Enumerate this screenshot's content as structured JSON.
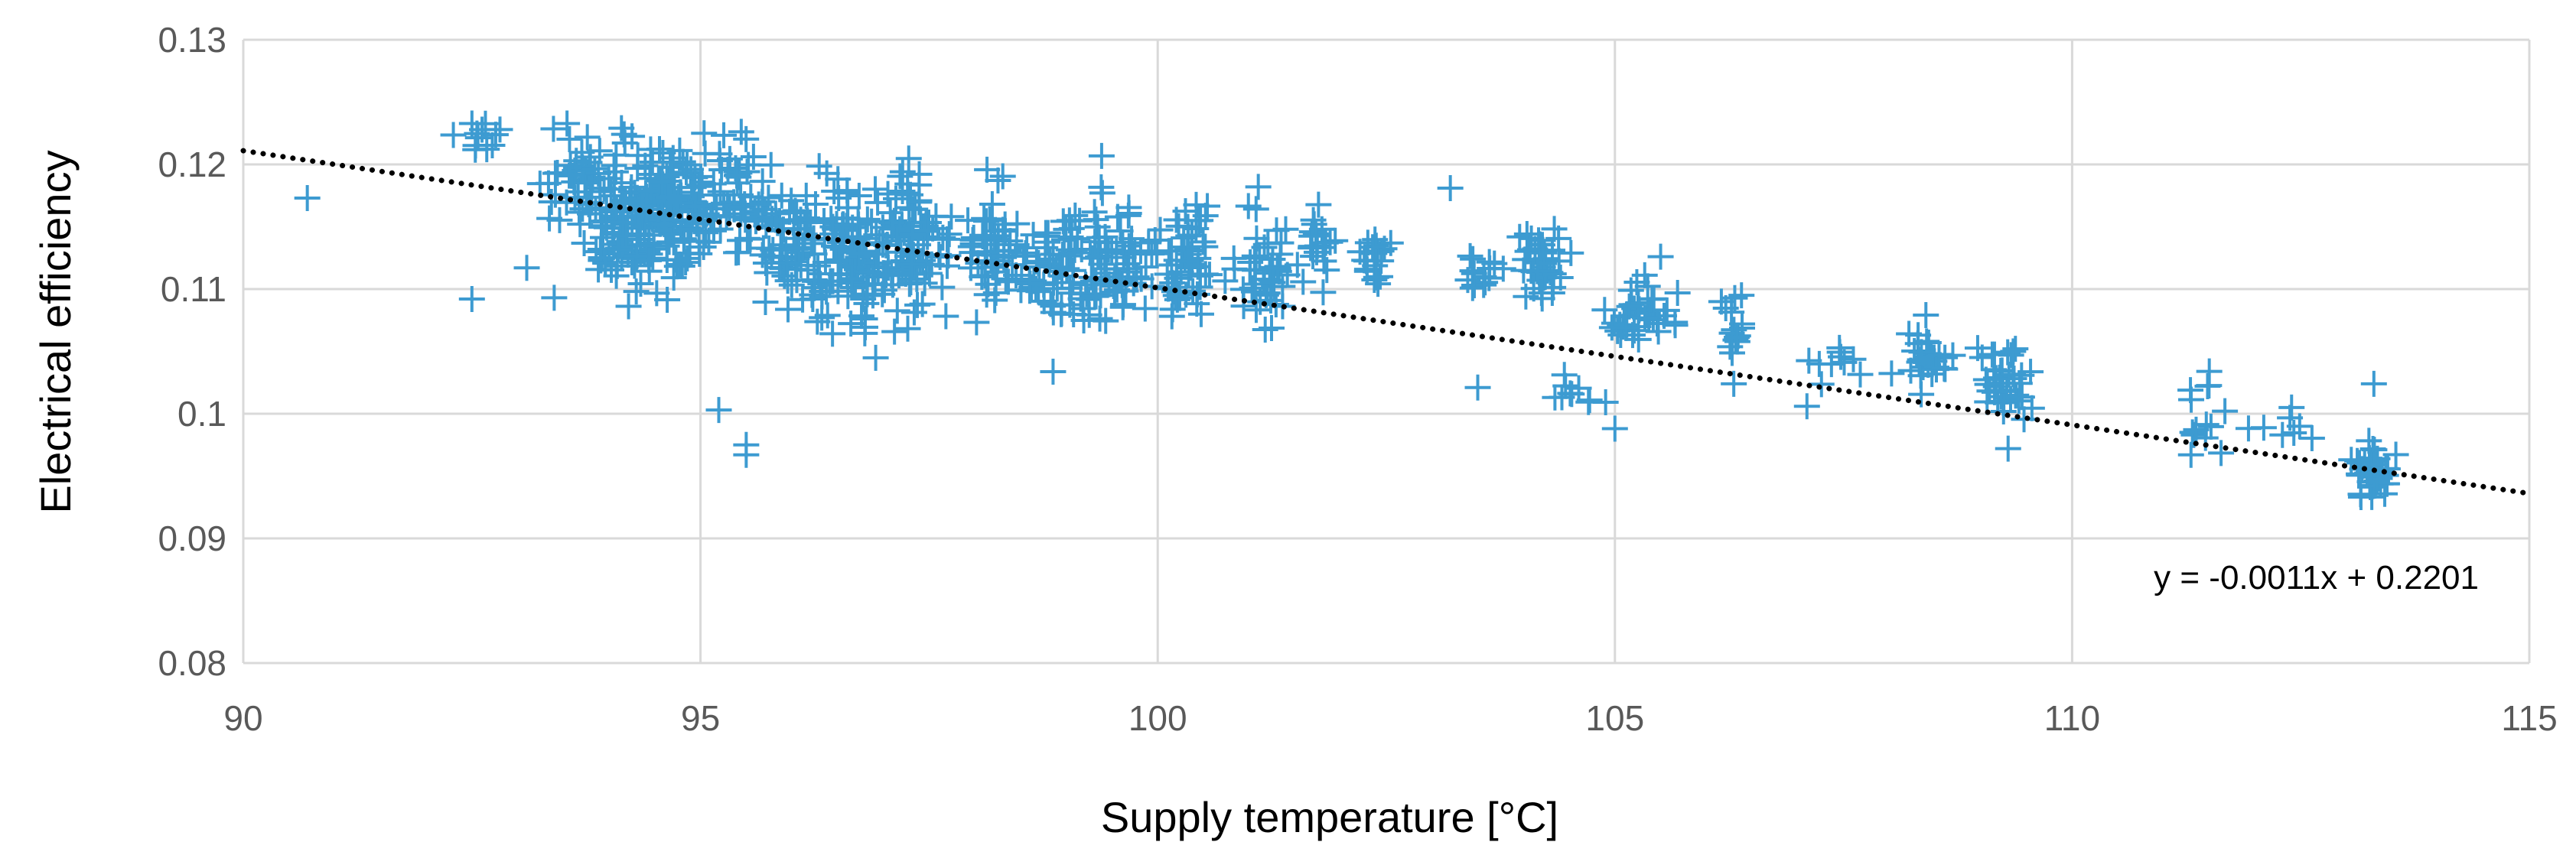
{
  "chart_data": {
    "type": "scatter",
    "title": "",
    "xlabel": "Supply temperature [°C]",
    "ylabel": "Electrical efficiency",
    "xlim": [
      90,
      115
    ],
    "ylim": [
      0.08,
      0.13
    ],
    "x_ticks": [
      90,
      95,
      100,
      105,
      110,
      115
    ],
    "y_ticks": [
      0.08,
      0.09,
      0.1,
      0.11,
      0.12,
      0.13
    ],
    "x_tick_labels": [
      "90",
      "95",
      "100",
      "105",
      "110",
      "115"
    ],
    "y_tick_labels": [
      "0.08",
      "0.09",
      "0.1",
      "0.11",
      "0.12",
      "0.13"
    ],
    "grid": true,
    "marker": "plus",
    "series_color": "#3d9bd1",
    "trendline_color": "#000000",
    "trendline": {
      "style": "dotted",
      "slope": -0.0011,
      "intercept": 0.2201,
      "label": "y = -0.0011x + 0.2201"
    },
    "clusters": [
      {
        "x": 92.6,
        "y": 0.122,
        "sx": 0.22,
        "sy": 0.0012,
        "n": 12
      },
      {
        "x": 93.6,
        "y": 0.119,
        "sx": 0.25,
        "sy": 0.0025,
        "n": 40
      },
      {
        "x": 94.2,
        "y": 0.1155,
        "sx": 0.35,
        "sy": 0.0038,
        "n": 130
      },
      {
        "x": 94.7,
        "y": 0.1165,
        "sx": 0.3,
        "sy": 0.0035,
        "n": 100
      },
      {
        "x": 95.4,
        "y": 0.1175,
        "sx": 0.28,
        "sy": 0.003,
        "n": 60
      },
      {
        "x": 96.0,
        "y": 0.1135,
        "sx": 0.3,
        "sy": 0.0035,
        "n": 70
      },
      {
        "x": 96.6,
        "y": 0.113,
        "sx": 0.3,
        "sy": 0.0038,
        "n": 90
      },
      {
        "x": 97.3,
        "y": 0.1135,
        "sx": 0.3,
        "sy": 0.0042,
        "n": 110
      },
      {
        "x": 98.2,
        "y": 0.1125,
        "sx": 0.25,
        "sy": 0.0035,
        "n": 60
      },
      {
        "x": 98.9,
        "y": 0.1115,
        "sx": 0.28,
        "sy": 0.0038,
        "n": 60
      },
      {
        "x": 99.5,
        "y": 0.1125,
        "sx": 0.28,
        "sy": 0.0038,
        "n": 70
      },
      {
        "x": 100.3,
        "y": 0.1125,
        "sx": 0.25,
        "sy": 0.0035,
        "n": 60
      },
      {
        "x": 101.2,
        "y": 0.111,
        "sx": 0.25,
        "sy": 0.003,
        "n": 50
      },
      {
        "x": 101.8,
        "y": 0.1135,
        "sx": 0.15,
        "sy": 0.0025,
        "n": 20
      },
      {
        "x": 102.4,
        "y": 0.1125,
        "sx": 0.15,
        "sy": 0.0015,
        "n": 20
      },
      {
        "x": 103.5,
        "y": 0.1115,
        "sx": 0.18,
        "sy": 0.0012,
        "n": 15
      },
      {
        "x": 104.2,
        "y": 0.112,
        "sx": 0.2,
        "sy": 0.0025,
        "n": 40
      },
      {
        "x": 104.6,
        "y": 0.102,
        "sx": 0.2,
        "sy": 0.0012,
        "n": 10
      },
      {
        "x": 105.3,
        "y": 0.1075,
        "sx": 0.22,
        "sy": 0.002,
        "n": 40
      },
      {
        "x": 106.3,
        "y": 0.107,
        "sx": 0.15,
        "sy": 0.0018,
        "n": 15
      },
      {
        "x": 107.4,
        "y": 0.104,
        "sx": 0.25,
        "sy": 0.0015,
        "n": 10
      },
      {
        "x": 108.4,
        "y": 0.1045,
        "sx": 0.2,
        "sy": 0.0015,
        "n": 30
      },
      {
        "x": 109.3,
        "y": 0.1025,
        "sx": 0.2,
        "sy": 0.0022,
        "n": 40
      },
      {
        "x": 111.4,
        "y": 0.0995,
        "sx": 0.15,
        "sy": 0.0018,
        "n": 12
      },
      {
        "x": 112.3,
        "y": 0.0985,
        "sx": 0.3,
        "sy": 0.0008,
        "n": 6
      },
      {
        "x": 113.3,
        "y": 0.0955,
        "sx": 0.15,
        "sy": 0.0015,
        "n": 50
      }
    ],
    "outliers": [
      [
        90.7,
        0.1173
      ],
      [
        92.5,
        0.1092
      ],
      [
        93.1,
        0.1117
      ],
      [
        93.4,
        0.1093
      ],
      [
        95.2,
        0.1003
      ],
      [
        95.5,
        0.0975
      ],
      [
        95.5,
        0.0967
      ],
      [
        98.8,
        0.1145
      ],
      [
        101.1,
        0.1182
      ],
      [
        103.2,
        0.1181
      ],
      [
        103.5,
        0.1021
      ],
      [
        105.5,
        0.1126
      ],
      [
        105.0,
        0.0988
      ],
      [
        106.3,
        0.1024
      ],
      [
        107.1,
        0.1006
      ],
      [
        109.3,
        0.0972
      ],
      [
        111.3,
        0.0967
      ],
      [
        111.5,
        0.1034
      ],
      [
        112.4,
        0.1005
      ],
      [
        112.3,
        0.0983
      ],
      [
        113.3,
        0.1024
      ]
    ]
  }
}
